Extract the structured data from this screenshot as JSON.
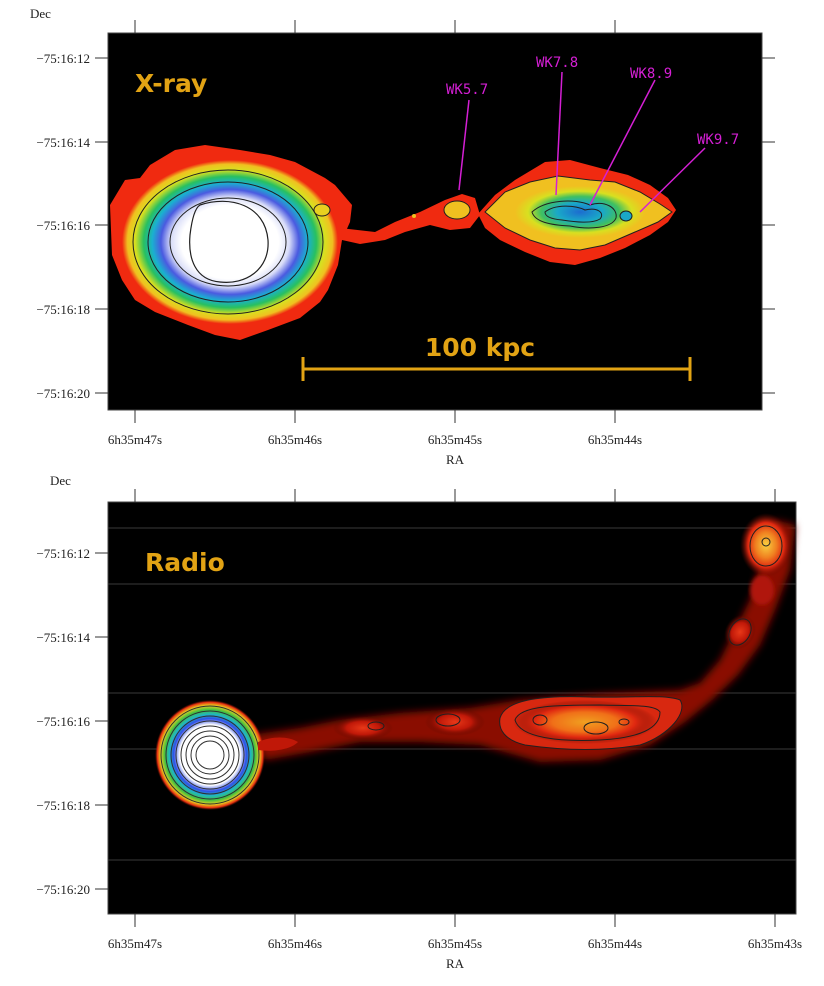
{
  "top_panel": {
    "label": "X-ray",
    "dec_axis_label": "Dec",
    "ra_axis_label": "RA",
    "dec_ticks": [
      "−75:16:12",
      "−75:16:14",
      "−75:16:16",
      "−75:16:18",
      "−75:16:20"
    ],
    "ra_ticks": [
      "6h35m47s",
      "6h35m46s",
      "6h35m45s",
      "6h35m44s"
    ],
    "scale_bar_label": "100 kpc",
    "knots": [
      "WK5.7",
      "WK7.8",
      "WK8.9",
      "WK9.7"
    ]
  },
  "bottom_panel": {
    "label": "Radio",
    "dec_axis_label": "Dec",
    "ra_axis_label": "RA",
    "dec_ticks": [
      "−75:16:12",
      "−75:16:14",
      "−75:16:16",
      "−75:16:18",
      "−75:16:20"
    ],
    "ra_ticks": [
      "6h35m47s",
      "6h35m46s",
      "6h35m45s",
      "6h35m44s",
      "6h35m43s"
    ]
  },
  "colors": {
    "label": "#e2a314",
    "knot_label": "#d41fd4",
    "background": "#000000"
  }
}
